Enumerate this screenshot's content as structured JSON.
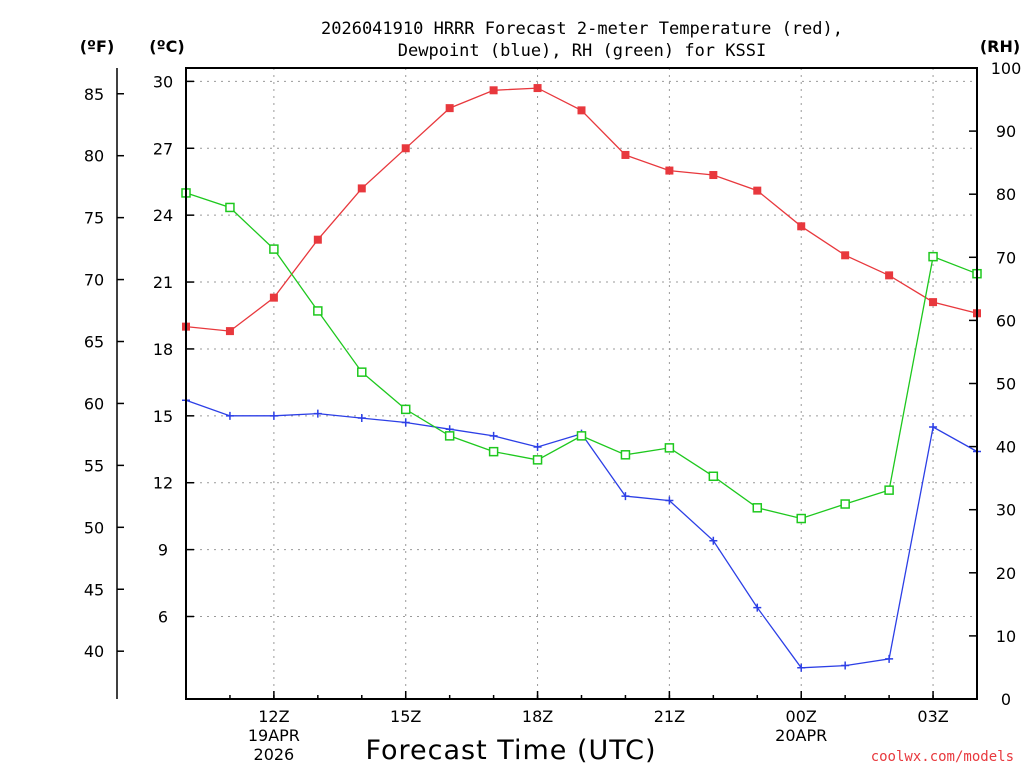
{
  "chart_data": {
    "type": "line",
    "title_line1": "2026041910 HRRR Forecast 2-meter Temperature (red),",
    "title_line2": "Dewpoint (blue), RH (green) for KSSI",
    "xlabel": "Forecast Time (UTC)",
    "unit_f": "(ºF)",
    "unit_c": "(ºC)",
    "unit_rh": "(RH)",
    "credit": "coolwx.com/models",
    "x_hours": [
      10,
      11,
      12,
      13,
      14,
      15,
      16,
      17,
      18,
      19,
      20,
      21,
      22,
      23,
      24,
      25,
      26,
      27,
      28
    ],
    "x_ticks": [
      {
        "hour": 12,
        "label": "12Z",
        "sub1": "19APR",
        "sub2": "2026"
      },
      {
        "hour": 15,
        "label": "15Z",
        "sub1": "",
        "sub2": ""
      },
      {
        "hour": 18,
        "label": "18Z",
        "sub1": "",
        "sub2": ""
      },
      {
        "hour": 21,
        "label": "21Z",
        "sub1": "",
        "sub2": ""
      },
      {
        "hour": 24,
        "label": "00Z",
        "sub1": "20APR",
        "sub2": ""
      },
      {
        "hour": 27,
        "label": "03Z",
        "sub1": "",
        "sub2": ""
      }
    ],
    "xlim": [
      10,
      28
    ],
    "ylim_c": [
      2.3,
      30.6
    ],
    "ylim_rh": [
      0,
      100
    ],
    "yticks_c": [
      30,
      27,
      24,
      21,
      18,
      15,
      12,
      9,
      6
    ],
    "yticks_f": [
      85,
      80,
      75,
      70,
      65,
      60,
      55,
      50,
      45,
      40
    ],
    "yticks_rh": [
      100,
      90,
      80,
      70,
      60,
      50,
      40,
      30,
      20,
      10,
      0
    ],
    "series": [
      {
        "name": "Temperature",
        "axis": "c",
        "color": "#e8383d",
        "marker": "filled-square",
        "values": [
          19.0,
          18.8,
          20.3,
          22.9,
          25.2,
          27.0,
          28.8,
          29.6,
          29.7,
          28.7,
          26.7,
          26.0,
          25.8,
          25.1,
          23.5,
          22.2,
          21.3,
          20.1,
          19.6
        ]
      },
      {
        "name": "Dewpoint",
        "axis": "c",
        "color": "#2c3fe6",
        "marker": "plus",
        "values": [
          15.7,
          15.0,
          15.0,
          15.1,
          14.9,
          14.7,
          14.4,
          14.1,
          13.6,
          14.2,
          11.4,
          11.2,
          9.4,
          6.4,
          3.7,
          3.8,
          4.1,
          14.5,
          13.4
        ]
      },
      {
        "name": "RH",
        "axis": "rh",
        "color": "#1ec81e",
        "marker": "open-square",
        "values": [
          80.2,
          77.9,
          71.3,
          61.5,
          51.8,
          45.9,
          41.7,
          39.2,
          37.9,
          41.7,
          38.7,
          39.8,
          35.3,
          30.3,
          28.6,
          30.9,
          33.1,
          70.1,
          67.4
        ]
      }
    ]
  }
}
